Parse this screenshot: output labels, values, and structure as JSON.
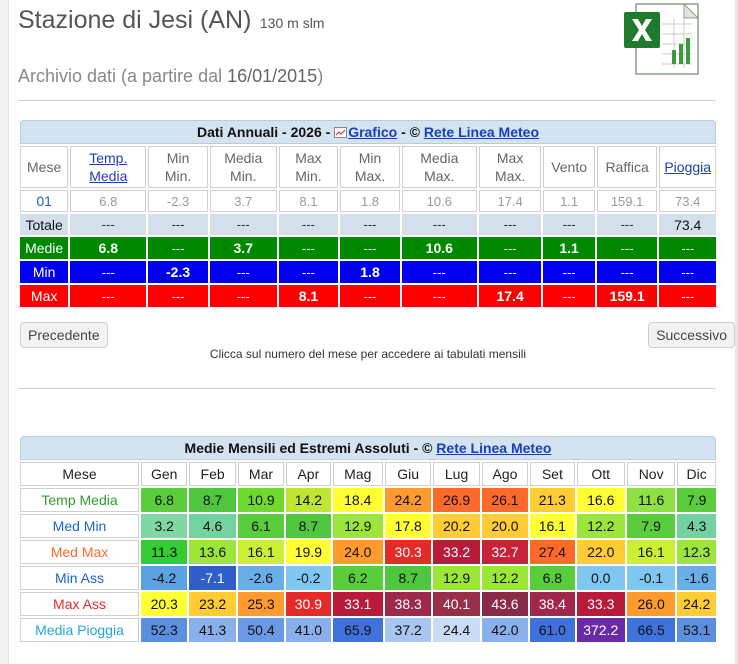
{
  "station": {
    "title": "Stazione di Jesi (AN)",
    "elevation": "130 m slm",
    "archive_prefix": "Archivio dati (a partire dal ",
    "archive_date": "16/01/2015",
    "archive_suffix": ")"
  },
  "annual": {
    "caption_text": "Dati Annuali - 2026 - ",
    "caption_link": "Grafico",
    "caption_sep": " - © ",
    "caption_source": "Rete Linea Meteo",
    "headers": [
      "Mese",
      "Temp.\nMedia",
      "Min\nMin.",
      "Media\nMin.",
      "Max\nMin.",
      "Min\nMax.",
      "Media\nMax.",
      "Max\nMax.",
      "Vento",
      "Raffica",
      "Pioggia"
    ],
    "month_row": [
      "01",
      "6.8",
      "-2.3",
      "3.7",
      "8.1",
      "1.8",
      "10.6",
      "17.4",
      "1.1",
      "159.1",
      "73.4"
    ],
    "total_row": [
      "Totale",
      "---",
      "---",
      "---",
      "---",
      "---",
      "---",
      "---",
      "---",
      "---",
      "73.4"
    ],
    "medie_row": [
      "Medie",
      "6.8",
      "---",
      "3.7",
      "---",
      "---",
      "10.6",
      "---",
      "1.1",
      "---",
      "---"
    ],
    "min_row": [
      "Min",
      "---",
      "-2.3",
      "---",
      "---",
      "1.8",
      "---",
      "---",
      "---",
      "---",
      "---"
    ],
    "max_row": [
      "Max",
      "---",
      "---",
      "---",
      "8.1",
      "---",
      "---",
      "17.4",
      "---",
      "159.1",
      "---"
    ],
    "prev_label": "Precedente",
    "next_label": "Successivo",
    "hint": "Clicca sul numero del mese per accedere ai tabulati mensili"
  },
  "monthly": {
    "caption_text": "Medie Mensili ed Estremi Assoluti - © ",
    "caption_source": "Rete Linea Meteo",
    "headers": [
      "Mese",
      "Gen",
      "Feb",
      "Mar",
      "Apr",
      "Mag",
      "Giu",
      "Lug",
      "Ago",
      "Set",
      "Ott",
      "Nov",
      "Dic"
    ],
    "rows": [
      {
        "label": "Temp Media",
        "label_color": "#2e9e2e",
        "values": [
          "6.8",
          "8.7",
          "10.9",
          "14.2",
          "18.4",
          "24.2",
          "26.9",
          "26.1",
          "21.3",
          "16.6",
          "11.6",
          "7.9"
        ],
        "colors": [
          "#5acd3c",
          "#4ec73e",
          "#6fd92e",
          "#bfe633",
          "#ffff33",
          "#ff9a2e",
          "#ff6a2a",
          "#ff6a2a",
          "#ffcc33",
          "#ffff33",
          "#8ee044",
          "#5acd3c"
        ]
      },
      {
        "label": "Med Min",
        "label_color": "#1a66c8",
        "values": [
          "3.2",
          "4.6",
          "6.1",
          "8.7",
          "12.9",
          "17.8",
          "20.2",
          "20.0",
          "16.1",
          "12.2",
          "7.9",
          "4.3"
        ],
        "colors": [
          "#7fd8a3",
          "#72d3a0",
          "#5acd3c",
          "#4ec73e",
          "#9ce63a",
          "#ffff33",
          "#ffcc33",
          "#ffcc33",
          "#ffff33",
          "#9ce63a",
          "#5acd3c",
          "#72d3a0"
        ]
      },
      {
        "label": "Med Max",
        "label_color": "#ff6a2a",
        "values": [
          "11.3",
          "13.6",
          "16.1",
          "19.9",
          "24.0",
          "30.3",
          "33.2",
          "32.7",
          "27.4",
          "22.0",
          "16.1",
          "12.3"
        ],
        "colors": [
          "#33cc33",
          "#9ce63a",
          "#ccee33",
          "#ffff33",
          "#ff9a2e",
          "#e62a2a",
          "#b81a3a",
          "#c8223a",
          "#ff6a2a",
          "#ffcc33",
          "#ccee33",
          "#9ce63a"
        ]
      },
      {
        "label": "Min Ass",
        "label_color": "#1a66c8",
        "values": [
          "-4.2",
          "-7.1",
          "-2.6",
          "-0.2",
          "6.2",
          "8.7",
          "12.9",
          "12.2",
          "6.8",
          "0.0",
          "-0.1",
          "-1.6"
        ],
        "colors": [
          "#5ba0e0",
          "#2f5ec8",
          "#6aaee8",
          "#7fc6f0",
          "#5acd3c",
          "#4ec73e",
          "#9ce63a",
          "#9ce63a",
          "#5acd3c",
          "#7fc6f0",
          "#7fc6f0",
          "#6aaee8"
        ]
      },
      {
        "label": "Max Ass",
        "label_color": "#e62a2a",
        "values": [
          "20.3",
          "23.2",
          "25.3",
          "30.9",
          "33.1",
          "38.3",
          "40.1",
          "43.6",
          "38.4",
          "33.3",
          "26.0",
          "24.2"
        ],
        "colors": [
          "#ffff33",
          "#ffcc33",
          "#ff9a2e",
          "#e62a2a",
          "#b81a3a",
          "#a0284a",
          "#982e4a",
          "#8a2a48",
          "#a0284a",
          "#b81a3a",
          "#ff9a2e",
          "#ffcc33"
        ]
      },
      {
        "label": "Media Pioggia",
        "label_color": "#20a8d8",
        "values": [
          "52.3",
          "41.3",
          "50.4",
          "41.0",
          "65.9",
          "37.2",
          "24.4",
          "42.0",
          "61.0",
          "372.2",
          "66.5",
          "53.1"
        ],
        "colors": [
          "#5b8fe0",
          "#8ab0ec",
          "#6a9ae6",
          "#8ab0ec",
          "#3f72dc",
          "#a8c6f0",
          "#c8dcf6",
          "#8ab0ec",
          "#3f72dc",
          "#6a2aa8",
          "#3f72dc",
          "#5b8fe0"
        ]
      }
    ]
  }
}
